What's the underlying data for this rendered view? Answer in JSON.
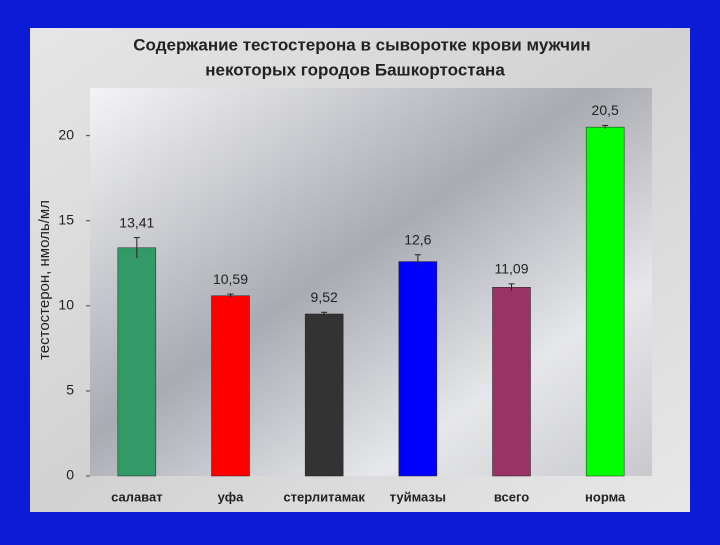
{
  "chart_data": {
    "type": "bar",
    "title": "Содержание тестостерона в сыворотке крови мужчин",
    "subtitle": "некоторых городов Башкортостана",
    "y_label": "тестостерон, нмоль/мл",
    "categories": [
      "салават",
      "уфа",
      "стерлитамак",
      "туймазы",
      "всего",
      "норма"
    ],
    "values": [
      13.41,
      10.59,
      9.52,
      12.6,
      11.09,
      20.5
    ],
    "value_labels": [
      "13,41",
      "10,59",
      "9,52",
      "12,6",
      "11,09",
      "20,5"
    ],
    "errors": [
      0.6,
      0.1,
      0.1,
      0.4,
      0.2,
      0.1
    ],
    "colors": [
      "#339966",
      "#ff0000",
      "#333333",
      "#0000ff",
      "#993366",
      "#00ff00"
    ],
    "ylim": [
      0,
      22.8
    ],
    "yticks": [
      0,
      5,
      10,
      15,
      20
    ]
  }
}
